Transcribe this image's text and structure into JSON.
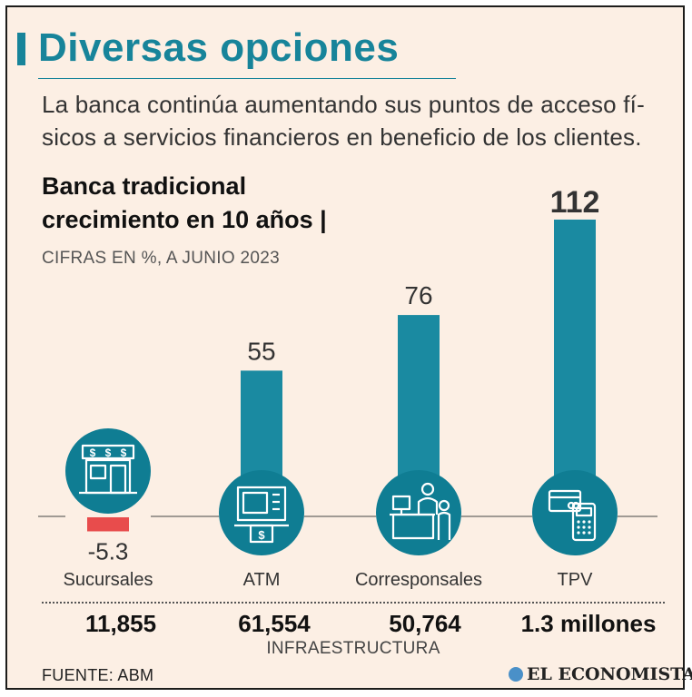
{
  "header": {
    "title": "Diversas opciones",
    "subtitle_lines": [
      "La banca continúa aumentando sus puntos de acceso fí-",
      "sicos a servicios financieros en beneficio de los clientes."
    ]
  },
  "chart_data": {
    "type": "bar",
    "title_lines": [
      "Banca tradicional",
      "crecimiento en 10 años |"
    ],
    "subtitle": "CIFRAS EN %, A JUNIO 2023",
    "categories": [
      "Sucursales",
      "ATM",
      "Corresponsales",
      "TPV"
    ],
    "values": [
      -5.3,
      55,
      76,
      112
    ],
    "value_labels": [
      "-5.3",
      "55",
      "76",
      "112"
    ],
    "colors": {
      "positive": "#1a8aa1",
      "negative": "#e84c4c"
    },
    "icons": [
      "bank-branch-icon",
      "atm-icon",
      "correspondent-counter-icon",
      "pos-terminal-icon"
    ]
  },
  "infrastructure": {
    "values": [
      "11,855",
      "61,554",
      "50,764",
      "1.3 millones"
    ],
    "label": "INFRAESTRUCTURA"
  },
  "footer": {
    "source": "FUENTE: ABM",
    "brand": "EL ECONOMISTA"
  }
}
